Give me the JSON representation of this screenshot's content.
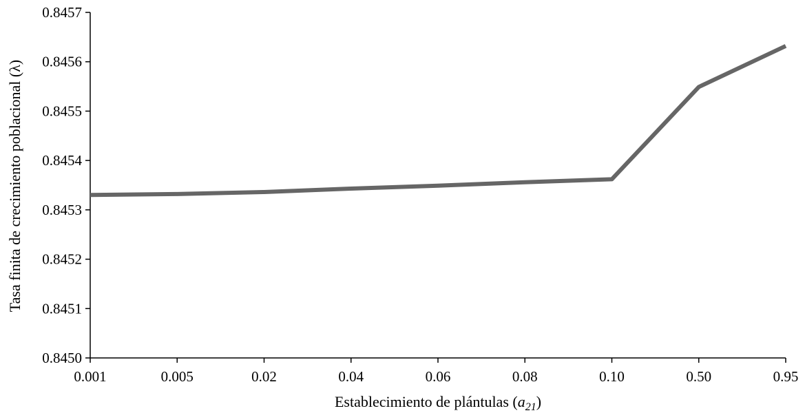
{
  "chart_data": {
    "type": "line",
    "title": "",
    "xlabel": {
      "text": "Establecimiento de plántulas (",
      "var": "a",
      "sub": "21",
      "close": ")"
    },
    "ylabel": "Tasa finita de crecimiento poblacional (λ)",
    "categories": [
      "0.001",
      "0.005",
      "0.02",
      "0.04",
      "0.06",
      "0.08",
      "0.10",
      "0.50",
      "0.95"
    ],
    "series": [
      {
        "values": [
          0.84533,
          0.845332,
          0.845336,
          0.845343,
          0.845349,
          0.845356,
          0.845362,
          0.845549,
          0.845632
        ]
      }
    ],
    "yticks": [
      "0.8450",
      "0.8451",
      "0.8452",
      "0.8453",
      "0.8454",
      "0.8455",
      "0.8456",
      "0.8457"
    ],
    "ylim": [
      0.845,
      0.8457
    ],
    "grid": false,
    "legend": "none",
    "colors": {
      "line": "#666666",
      "axis": "#000000",
      "text": "#000000"
    }
  }
}
